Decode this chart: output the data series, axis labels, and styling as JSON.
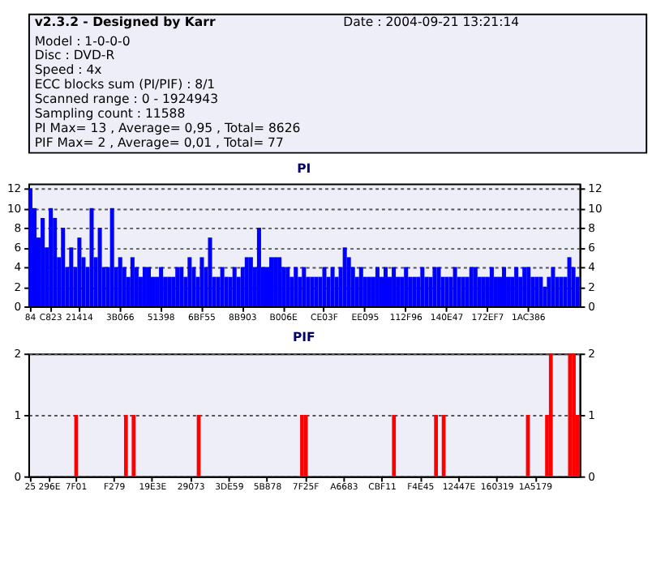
{
  "chart_data": [
    {
      "type": "other",
      "title": "v2.3.2 - Designed by Karr",
      "annotations": [
        "Date : 2004-09-21 13:21:14",
        "Model : 1-0-0-0",
        "Disc : DVD-R",
        "Speed : 4x",
        "ECC blocks sum (PI/PIF) : 8/1",
        "Scanned range : 0 - 1924943",
        "Sampling count : 11588",
        "PI Max= 13 , Average= 0,95 , Total= 8626",
        "PIF Max= 2 , Average= 0,01 , Total= 77"
      ]
    },
    {
      "type": "bar",
      "title": "PI",
      "color": "#0000ff",
      "ylim": [
        0,
        12.5
      ],
      "yticks": [
        0,
        2,
        4,
        6,
        8,
        10,
        12
      ],
      "y2lim": [
        0,
        12.5
      ],
      "y2ticks": [
        0,
        2,
        4,
        6,
        8,
        10,
        12
      ],
      "grid": "y",
      "categories": [
        "84",
        null,
        null,
        null,
        null,
        "C823",
        null,
        null,
        null,
        null,
        null,
        null,
        "21414",
        null,
        null,
        null,
        null,
        null,
        null,
        null,
        null,
        null,
        "3B066",
        null,
        null,
        null,
        null,
        null,
        null,
        null,
        null,
        null,
        "51398",
        null,
        null,
        null,
        null,
        null,
        null,
        null,
        null,
        null,
        "6BF55",
        null,
        null,
        null,
        null,
        null,
        null,
        null,
        null,
        null,
        "8B903",
        null,
        null,
        null,
        null,
        null,
        null,
        null,
        null,
        null,
        "B006E",
        null,
        null,
        null,
        null,
        null,
        null,
        null,
        null,
        null,
        "CE03F",
        null,
        null,
        null,
        null,
        null,
        null,
        null,
        null,
        null,
        "EE095",
        null,
        null,
        null,
        null,
        null,
        null,
        null,
        null,
        null,
        "112F96",
        null,
        null,
        null,
        null,
        null,
        null,
        null,
        null,
        null,
        "140E47",
        null,
        null,
        null,
        null,
        null,
        null,
        null,
        null,
        null,
        "172EF7",
        null,
        null,
        null,
        null,
        null,
        null,
        null,
        null,
        null,
        "1AC386",
        null,
        null,
        null,
        null,
        null,
        null,
        null,
        null,
        null,
        null,
        null,
        null
      ],
      "values": [
        12,
        10,
        7,
        9,
        6,
        10,
        9,
        5,
        8,
        4,
        6,
        4,
        7,
        5,
        4,
        10,
        5,
        8,
        4,
        4,
        10,
        4,
        5,
        4,
        3,
        5,
        4,
        3,
        4,
        4,
        3,
        3,
        4,
        3,
        3,
        3,
        4,
        4,
        3,
        5,
        4,
        3,
        5,
        4,
        7,
        3,
        3,
        4,
        3,
        3,
        4,
        3,
        4,
        5,
        5,
        4,
        8,
        4,
        4,
        5,
        5,
        5,
        4,
        4,
        3,
        4,
        3,
        4,
        3,
        3,
        3,
        3,
        4,
        3,
        4,
        3,
        4,
        6,
        5,
        4,
        3,
        4,
        3,
        3,
        3,
        4,
        3,
        4,
        3,
        4,
        3,
        3,
        4,
        3,
        3,
        3,
        4,
        3,
        3,
        4,
        4,
        3,
        3,
        3,
        4,
        3,
        3,
        3,
        4,
        4,
        3,
        3,
        3,
        4,
        3,
        3,
        4,
        3,
        3,
        4,
        3,
        4,
        4,
        3,
        3,
        3,
        2,
        3,
        4,
        3,
        3,
        3,
        5,
        4,
        3
      ]
    },
    {
      "type": "bar",
      "title": "PIF",
      "color": "#ff0000",
      "ylim": [
        0,
        2
      ],
      "yticks": [
        0,
        1,
        2
      ],
      "y2lim": [
        0,
        2
      ],
      "y2ticks": [
        0,
        1,
        2
      ],
      "grid": "y",
      "categories": [
        "25",
        null,
        null,
        null,
        null,
        "296E",
        null,
        null,
        null,
        null,
        null,
        null,
        "7F01",
        null,
        null,
        null,
        null,
        null,
        null,
        null,
        null,
        null,
        "F279",
        null,
        null,
        null,
        null,
        null,
        null,
        null,
        null,
        null,
        "19E3E",
        null,
        null,
        null,
        null,
        null,
        null,
        null,
        null,
        null,
        "29073",
        null,
        null,
        null,
        null,
        null,
        null,
        null,
        null,
        null,
        "3DE59",
        null,
        null,
        null,
        null,
        null,
        null,
        null,
        null,
        null,
        "5B878",
        null,
        null,
        null,
        null,
        null,
        null,
        null,
        null,
        null,
        "7F25F",
        null,
        null,
        null,
        null,
        null,
        null,
        null,
        null,
        null,
        "A6683",
        null,
        null,
        null,
        null,
        null,
        null,
        null,
        null,
        null,
        "CBF11",
        null,
        null,
        null,
        null,
        null,
        null,
        null,
        null,
        null,
        "F4E45",
        null,
        null,
        null,
        null,
        null,
        null,
        null,
        null,
        null,
        "12447E",
        null,
        null,
        null,
        null,
        null,
        null,
        null,
        null,
        null,
        "160319",
        null,
        null,
        null,
        null,
        null,
        null,
        null,
        null,
        null,
        "1A5179",
        null,
        null,
        null,
        null,
        null,
        null,
        null,
        null,
        null,
        null,
        null
      ],
      "values": [
        0,
        0,
        0,
        0,
        0,
        0,
        0,
        0,
        0,
        0,
        0,
        0,
        1,
        0,
        0,
        0,
        0,
        0,
        0,
        0,
        0,
        0,
        0,
        0,
        0,
        1,
        0,
        1,
        0,
        0,
        0,
        0,
        0,
        0,
        0,
        0,
        0,
        0,
        0,
        0,
        0,
        0,
        0,
        0,
        1,
        0,
        0,
        0,
        0,
        0,
        0,
        0,
        0,
        0,
        0,
        0,
        0,
        0,
        0,
        0,
        0,
        0,
        0,
        0,
        0,
        0,
        0,
        0,
        0,
        0,
        0,
        1,
        1,
        0,
        0,
        0,
        0,
        0,
        0,
        0,
        0,
        0,
        0,
        0,
        0,
        0,
        0,
        0,
        0,
        0,
        0,
        0,
        0,
        0,
        0,
        1,
        0,
        0,
        0,
        0,
        0,
        0,
        0,
        0,
        0,
        0,
        1,
        0,
        1,
        0,
        0,
        0,
        0,
        0,
        0,
        0,
        0,
        0,
        0,
        0,
        0,
        0,
        0,
        0,
        0,
        0,
        0,
        0,
        0,
        0,
        1,
        0,
        0,
        0,
        0,
        1,
        2,
        0,
        0,
        0,
        0,
        2,
        2,
        1
      ]
    }
  ]
}
